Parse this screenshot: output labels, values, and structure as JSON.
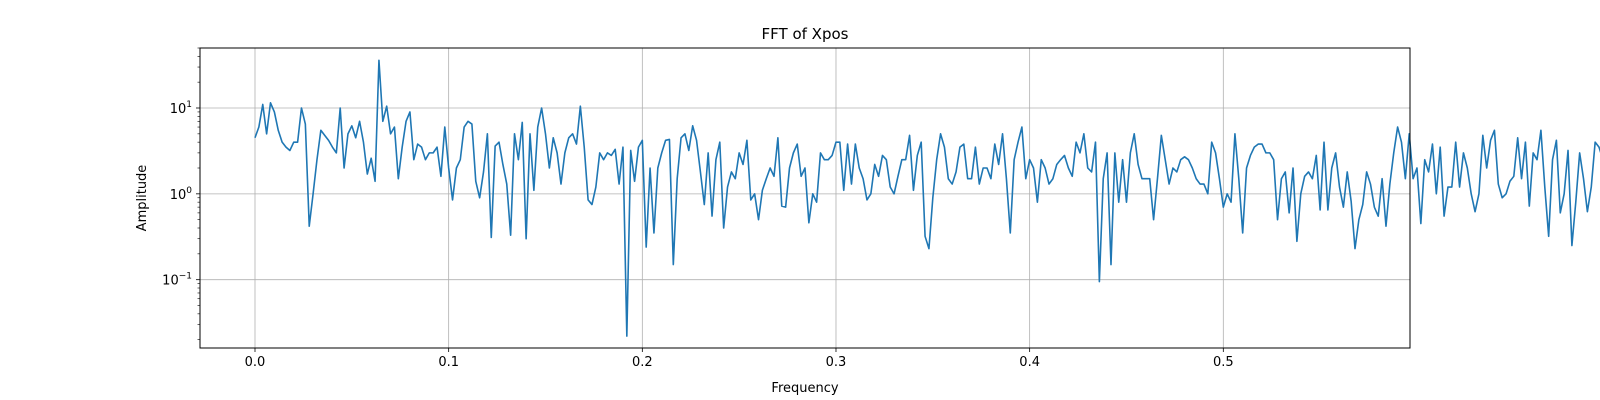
{
  "chart_data": {
    "type": "line",
    "title": "FFT of Xpos",
    "xlabel": "Frequency",
    "ylabel": "Amplitude",
    "x_scale": "linear",
    "y_scale": "log",
    "xlim": [
      -0.0284,
      0.5964
    ],
    "ylim": [
      0.016,
      50
    ],
    "xticks": [
      {
        "value": 0.0,
        "label": "0.0"
      },
      {
        "value": 0.1,
        "label": "0.1"
      },
      {
        "value": 0.2,
        "label": "0.2"
      },
      {
        "value": 0.3,
        "label": "0.3"
      },
      {
        "value": 0.4,
        "label": "0.4"
      },
      {
        "value": 0.5,
        "label": "0.5"
      }
    ],
    "yticks": [
      {
        "value": 0.1,
        "base": "10",
        "exp": "−1"
      },
      {
        "value": 1,
        "base": "10",
        "exp": "0"
      },
      {
        "value": 10,
        "base": "10",
        "exp": "1"
      }
    ],
    "grid": true,
    "line_color": "#1f77b4",
    "grid_color": "#b0b0b0",
    "series": [
      {
        "x_start": 0.0,
        "x_step": 0.002,
        "values": [
          4.5,
          6.0,
          11.0,
          5.0,
          11.5,
          9.0,
          5.5,
          4.0,
          3.5,
          3.2,
          4.0,
          4.0,
          10.0,
          6.5,
          0.42,
          1.0,
          2.5,
          5.5,
          4.8,
          4.2,
          3.5,
          3.0,
          10.0,
          2.0,
          5.0,
          6.2,
          4.5,
          7.0,
          4.0,
          1.7,
          2.6,
          1.4,
          36.0,
          7.0,
          10.5,
          5.0,
          6.0,
          1.5,
          3.5,
          7.0,
          9.0,
          2.5,
          3.8,
          3.5,
          2.5,
          3.0,
          3.0,
          3.5,
          1.6,
          6.0,
          2.0,
          0.85,
          2.0,
          2.5,
          6.0,
          7.0,
          6.5,
          1.4,
          0.9,
          1.8,
          5.0,
          0.31,
          3.6,
          4.0,
          2.2,
          1.3,
          0.33,
          5.0,
          2.5,
          6.8,
          0.3,
          5.0,
          1.1,
          6.0,
          10.0,
          5.0,
          2.0,
          4.5,
          3.0,
          1.3,
          3.0,
          4.5,
          5.0,
          3.8,
          10.5,
          3.5,
          0.85,
          0.75,
          1.2,
          3.0,
          2.5,
          3.0,
          2.8,
          3.3,
          1.3,
          3.5,
          0.022,
          3.2,
          1.4,
          3.5,
          4.2,
          0.24,
          2.0,
          0.35,
          2.0,
          3.0,
          4.2,
          4.3,
          0.15,
          1.5,
          4.5,
          5.0,
          3.2,
          6.2,
          4.2,
          1.8,
          0.75,
          3.0,
          0.55,
          2.5,
          4.0,
          0.4,
          1.2,
          1.8,
          1.5,
          3.0,
          2.2,
          4.2,
          0.85,
          1.0,
          0.5,
          1.1,
          1.5,
          2.0,
          1.6,
          4.5,
          0.72,
          0.7,
          2.0,
          3.0,
          3.8,
          1.6,
          2.0,
          0.46,
          1.0,
          0.8,
          3.0,
          2.5,
          2.5,
          2.8,
          4.0,
          4.0,
          1.1,
          3.8,
          1.3,
          3.8,
          2.0,
          1.5,
          0.85,
          1.0,
          2.2,
          1.6,
          2.8,
          2.5,
          1.2,
          1.0,
          1.6,
          2.5,
          2.5,
          4.8,
          1.1,
          2.8,
          4.0,
          0.32,
          0.23,
          0.9,
          2.5,
          5.0,
          3.5,
          1.5,
          1.3,
          1.8,
          3.5,
          3.8,
          1.5,
          1.5,
          3.5,
          1.3,
          2.0,
          2.0,
          1.5,
          3.8,
          2.2,
          5.0,
          1.5,
          0.35,
          2.5,
          4.0,
          6.0,
          1.5,
          2.5,
          2.0,
          0.8,
          2.5,
          2.0,
          1.3,
          1.5,
          2.2,
          2.5,
          2.8,
          2.0,
          1.6,
          4.0,
          3.0,
          5.0,
          2.0,
          1.8,
          4.0,
          0.095,
          1.5,
          3.0,
          0.15,
          3.0,
          0.8,
          2.5,
          0.8,
          3.0,
          5.0,
          2.2,
          1.5,
          1.5,
          1.5,
          0.5,
          1.5,
          4.8,
          2.5,
          1.3,
          2.0,
          1.8,
          2.5,
          2.7,
          2.5,
          2.0,
          1.5,
          1.3,
          1.3,
          1.0,
          4.0,
          3.0,
          1.5,
          0.7,
          1.0,
          0.8,
          5.0,
          1.5,
          0.35,
          2.0,
          2.8,
          3.5,
          3.8,
          3.8,
          3.0,
          3.0,
          2.5,
          0.5,
          1.5,
          1.8,
          0.6,
          2.0,
          0.28,
          1.0,
          1.6,
          1.8,
          1.5,
          2.8,
          0.65,
          4.0,
          0.65,
          2.0,
          3.0,
          1.2,
          0.7,
          1.8,
          0.82,
          0.23,
          0.5,
          0.75,
          1.8,
          1.3,
          0.7,
          0.55,
          1.5,
          0.42,
          1.3,
          3.0,
          6.0,
          4.0,
          1.5,
          5.0,
          1.5,
          2.0,
          0.45,
          2.5,
          1.8,
          3.8,
          1.0,
          3.5,
          0.55,
          1.2,
          1.2,
          4.0,
          1.2,
          3.0,
          2.0,
          1.0,
          0.62,
          1.0,
          4.8,
          2.0,
          4.2,
          5.5,
          1.3,
          0.9,
          1.0,
          1.4,
          1.6,
          4.5,
          1.5,
          4.0,
          0.72,
          3.0,
          2.5,
          5.5,
          1.2,
          0.32,
          2.5,
          4.2,
          0.6,
          1.0,
          3.2,
          0.25,
          0.8,
          3.0,
          1.5,
          0.62,
          1.2,
          4.0,
          3.5,
          2.5,
          2.0,
          3.8,
          0.45,
          2.5,
          1.5,
          0.7,
          1.0,
          0.032,
          2.2,
          1.5,
          3.0,
          0.12,
          3.5,
          2.5,
          1.0,
          0.72,
          0.75,
          5.5,
          3.8,
          3.5,
          1.0,
          0.5,
          0.75,
          3.2,
          1.5,
          3.0,
          2.0,
          0.45,
          0.3,
          1.0,
          4.0,
          1.5,
          3.5,
          0.35,
          0.32,
          2.0,
          1.1,
          1.2,
          3.0,
          0.55,
          0.5,
          1.0,
          3.8,
          3.5,
          3.0,
          4.0,
          1.0,
          1.0,
          2.5,
          4.5,
          5.0,
          3.0,
          2.8,
          1.5,
          3.8,
          4.2,
          2.0,
          3.8,
          3.0,
          1.0,
          0.75,
          2.5,
          4.5,
          3.2,
          2.5,
          0.45,
          0.6,
          2.0,
          2.8,
          4.5,
          6.5,
          4.0,
          0.6,
          0.7
        ]
      }
    ]
  }
}
